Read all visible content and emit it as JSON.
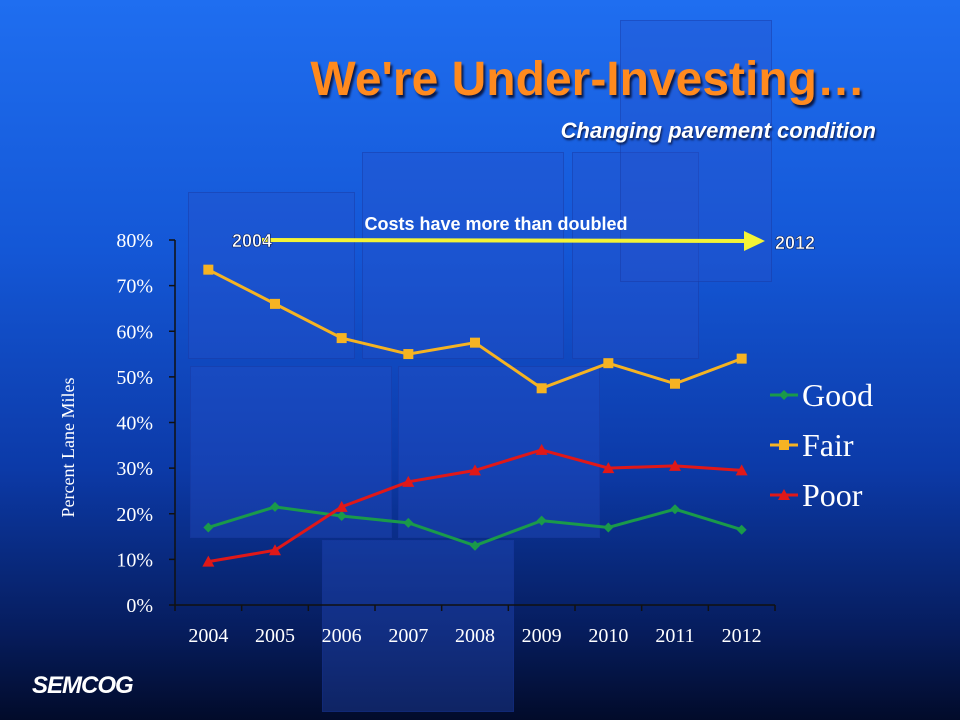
{
  "title": "We're Under-Investing…",
  "subtitle": "Changing pavement condition",
  "logo": "SEMCOG",
  "colors": {
    "title": "#ff8a1e",
    "good": "#1a9a4a",
    "fair": "#f5b323",
    "poor": "#e01818",
    "arrow": "#f4f436"
  },
  "chart_data": {
    "type": "line",
    "x": [
      "2004",
      "2005",
      "2006",
      "2007",
      "2008",
      "2009",
      "2010",
      "2011",
      "2012"
    ],
    "ylabel": "Percent Lane Miles",
    "ylim": [
      0,
      80
    ],
    "yticks": [
      "0%",
      "10%",
      "20%",
      "30%",
      "40%",
      "50%",
      "60%",
      "70%",
      "80%"
    ],
    "grid": false,
    "legend_position": "right",
    "series": [
      {
        "name": "Good",
        "color": "#1a9a4a",
        "marker": "diamond",
        "values": [
          17,
          21.5,
          19.5,
          18,
          13,
          18.5,
          17,
          21,
          16.5
        ]
      },
      {
        "name": "Fair",
        "color": "#f5b323",
        "marker": "square",
        "values": [
          73.5,
          66,
          58.5,
          55,
          57.5,
          47.5,
          53,
          48.5,
          54
        ]
      },
      {
        "name": "Poor",
        "color": "#e01818",
        "marker": "triangle",
        "values": [
          9.5,
          12,
          21.5,
          27,
          29.5,
          34,
          30,
          30.5,
          29.5
        ]
      }
    ],
    "annotations": {
      "arrow_label": "Costs have more than doubled",
      "start_label": "2004",
      "end_label": "2012"
    }
  }
}
